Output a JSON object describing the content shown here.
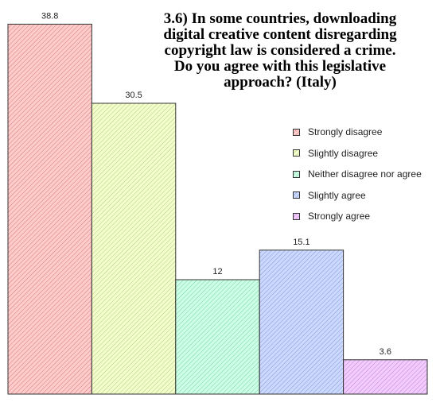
{
  "chart_data": {
    "type": "bar",
    "title": "3.6) In some countries, downloading\ndigital creative content disregarding\ncopyright law is considered a crime.\nDo you agree with this legislative\napproach? (Italy)",
    "xlabel": "",
    "ylabel": "",
    "ylim": [
      0,
      40
    ],
    "grid": false,
    "legend_position": "right",
    "categories": [
      "Strongly disagree",
      "Slightly disagree",
      "Neither disagree nor agree",
      "Slightly agree",
      "Strongly agree"
    ],
    "values": [
      38.8,
      30.5,
      12,
      15.1,
      3.6
    ],
    "value_labels": [
      "38.8",
      "30.5",
      "12",
      "15.1",
      "3.6"
    ],
    "colors": {
      "fill": [
        "#ffcccc",
        "#f2ffcc",
        "#ccffe6",
        "#ccd9ff",
        "#f2ccff"
      ],
      "hatch": [
        "#b84c4c",
        "#9aa84a",
        "#4cb881",
        "#5a70b8",
        "#a85ab8"
      ]
    }
  }
}
